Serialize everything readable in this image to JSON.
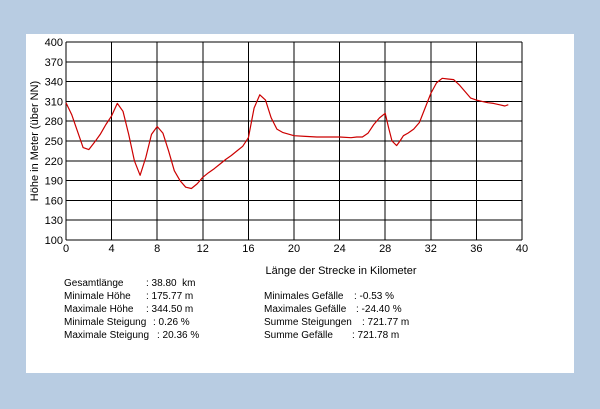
{
  "chart_data": {
    "type": "line",
    "xlabel": "Länge der Strecke in Kilometer",
    "ylabel": "Höhe in Meter (über NN)",
    "xlim": [
      0,
      40
    ],
    "ylim": [
      100,
      400
    ],
    "x_ticks": [
      0,
      4,
      8,
      12,
      16,
      20,
      24,
      28,
      32,
      36,
      40
    ],
    "y_ticks": [
      100,
      130,
      160,
      190,
      220,
      250,
      280,
      310,
      340,
      370,
      400
    ],
    "grid": true,
    "line_color": "#cc0000",
    "series": [
      {
        "x": [
          0,
          0.5,
          1,
          1.5,
          2,
          2.5,
          3,
          3.5,
          4,
          4.5,
          5,
          5.5,
          6,
          6.5,
          7,
          7.5,
          8,
          8.5,
          9,
          9.5,
          10,
          10.5,
          11,
          11.5,
          12,
          12.5,
          13,
          13.5,
          14,
          14.5,
          15,
          15.5,
          16,
          16.5,
          17,
          17.5,
          18,
          18.5,
          19,
          20,
          21,
          22,
          23,
          24,
          25,
          25.5,
          26,
          26.5,
          27,
          27.5,
          28,
          28.3,
          28.6,
          29,
          29.3,
          29.6,
          30,
          30.5,
          31,
          31.5,
          32,
          32.5,
          33,
          33.5,
          34,
          34.5,
          35,
          35.5,
          36,
          36.5,
          37,
          37.5,
          38,
          38.5,
          38.8
        ],
        "y": [
          308,
          290,
          265,
          240,
          237,
          248,
          260,
          275,
          288,
          307,
          295,
          260,
          220,
          198,
          225,
          260,
          272,
          262,
          235,
          205,
          190,
          180,
          178,
          185,
          195,
          202,
          208,
          215,
          222,
          228,
          235,
          242,
          255,
          300,
          320,
          312,
          285,
          268,
          263,
          258,
          257,
          256,
          256,
          256,
          255,
          256,
          256,
          262,
          275,
          285,
          292,
          270,
          250,
          243,
          250,
          258,
          262,
          268,
          278,
          300,
          322,
          338,
          345,
          344,
          343,
          335,
          325,
          315,
          312,
          310,
          308,
          307,
          305,
          303,
          305
        ]
      }
    ]
  },
  "stats": {
    "left": [
      {
        "label": "Gesamtlänge",
        "value": ": 38.80  km"
      },
      {
        "label": "Minimale Höhe",
        "value": ": 175.77 m"
      },
      {
        "label": "Maximale Höhe",
        "value": ": 344.50 m"
      },
      {
        "label": "Minimale Steigung",
        "value": ": 0.26 %"
      },
      {
        "label": "Maximale Steigung",
        "value": ": 20.36 %"
      }
    ],
    "right": [
      {
        "label": "Minimales Gefälle",
        "value": ": -0.53 %"
      },
      {
        "label": "Maximales Gefälle",
        "value": ": -24.40 %"
      },
      {
        "label": "Summe Steigungen",
        "value": ": 721.77 m"
      },
      {
        "label": "Summe Gefälle",
        "value": ": 721.78 m"
      }
    ]
  }
}
